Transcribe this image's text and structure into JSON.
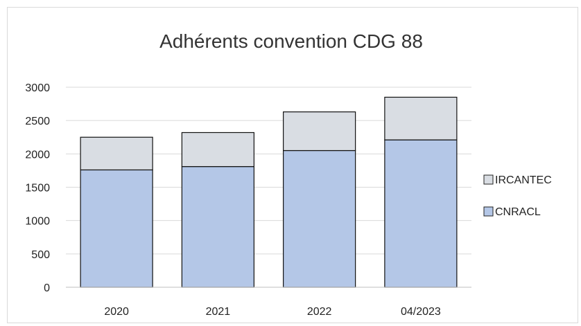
{
  "chart_data": {
    "type": "bar",
    "stacked": true,
    "title": "Adhérents convention CDG 88",
    "categories": [
      "2020",
      "2021",
      "2022",
      "04/2023"
    ],
    "series": [
      {
        "name": "CNRACL",
        "values": [
          1760,
          1810,
          2050,
          2210
        ],
        "color": "#b4c7e7"
      },
      {
        "name": "IRCANTEC",
        "values": [
          490,
          510,
          580,
          640
        ],
        "color": "#d9dde3"
      }
    ],
    "ylim": [
      0,
      3000
    ],
    "yticks": [
      "0",
      "500",
      "1000",
      "1500",
      "2000",
      "2500",
      "3000"
    ],
    "grid": true,
    "legend": "right"
  }
}
